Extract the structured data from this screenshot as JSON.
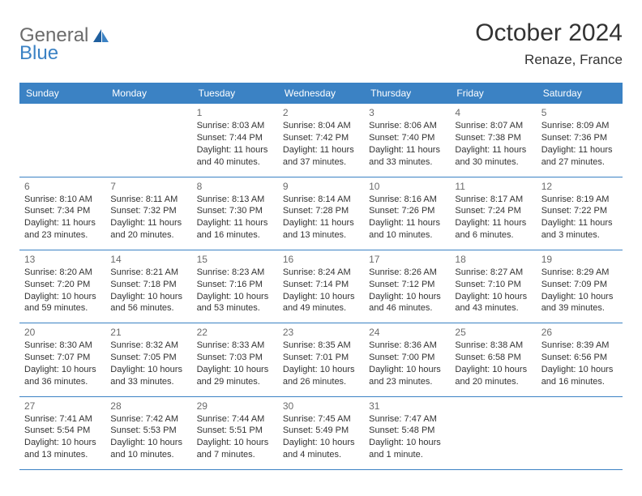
{
  "brand": {
    "part1": "General",
    "part2": "Blue"
  },
  "title": "October 2024",
  "location": "Renaze, France",
  "colors": {
    "header_bg": "#3b82c4",
    "header_text": "#ffffff",
    "border": "#3b82c4",
    "daynum": "#6b6b6b",
    "body_text": "#333333",
    "page_bg": "#ffffff"
  },
  "day_headers": [
    "Sunday",
    "Monday",
    "Tuesday",
    "Wednesday",
    "Thursday",
    "Friday",
    "Saturday"
  ],
  "weeks": [
    [
      {
        "n": "",
        "sr": "",
        "ss": "",
        "dl": ""
      },
      {
        "n": "",
        "sr": "",
        "ss": "",
        "dl": ""
      },
      {
        "n": "1",
        "sr": "Sunrise: 8:03 AM",
        "ss": "Sunset: 7:44 PM",
        "dl": "Daylight: 11 hours and 40 minutes."
      },
      {
        "n": "2",
        "sr": "Sunrise: 8:04 AM",
        "ss": "Sunset: 7:42 PM",
        "dl": "Daylight: 11 hours and 37 minutes."
      },
      {
        "n": "3",
        "sr": "Sunrise: 8:06 AM",
        "ss": "Sunset: 7:40 PM",
        "dl": "Daylight: 11 hours and 33 minutes."
      },
      {
        "n": "4",
        "sr": "Sunrise: 8:07 AM",
        "ss": "Sunset: 7:38 PM",
        "dl": "Daylight: 11 hours and 30 minutes."
      },
      {
        "n": "5",
        "sr": "Sunrise: 8:09 AM",
        "ss": "Sunset: 7:36 PM",
        "dl": "Daylight: 11 hours and 27 minutes."
      }
    ],
    [
      {
        "n": "6",
        "sr": "Sunrise: 8:10 AM",
        "ss": "Sunset: 7:34 PM",
        "dl": "Daylight: 11 hours and 23 minutes."
      },
      {
        "n": "7",
        "sr": "Sunrise: 8:11 AM",
        "ss": "Sunset: 7:32 PM",
        "dl": "Daylight: 11 hours and 20 minutes."
      },
      {
        "n": "8",
        "sr": "Sunrise: 8:13 AM",
        "ss": "Sunset: 7:30 PM",
        "dl": "Daylight: 11 hours and 16 minutes."
      },
      {
        "n": "9",
        "sr": "Sunrise: 8:14 AM",
        "ss": "Sunset: 7:28 PM",
        "dl": "Daylight: 11 hours and 13 minutes."
      },
      {
        "n": "10",
        "sr": "Sunrise: 8:16 AM",
        "ss": "Sunset: 7:26 PM",
        "dl": "Daylight: 11 hours and 10 minutes."
      },
      {
        "n": "11",
        "sr": "Sunrise: 8:17 AM",
        "ss": "Sunset: 7:24 PM",
        "dl": "Daylight: 11 hours and 6 minutes."
      },
      {
        "n": "12",
        "sr": "Sunrise: 8:19 AM",
        "ss": "Sunset: 7:22 PM",
        "dl": "Daylight: 11 hours and 3 minutes."
      }
    ],
    [
      {
        "n": "13",
        "sr": "Sunrise: 8:20 AM",
        "ss": "Sunset: 7:20 PM",
        "dl": "Daylight: 10 hours and 59 minutes."
      },
      {
        "n": "14",
        "sr": "Sunrise: 8:21 AM",
        "ss": "Sunset: 7:18 PM",
        "dl": "Daylight: 10 hours and 56 minutes."
      },
      {
        "n": "15",
        "sr": "Sunrise: 8:23 AM",
        "ss": "Sunset: 7:16 PM",
        "dl": "Daylight: 10 hours and 53 minutes."
      },
      {
        "n": "16",
        "sr": "Sunrise: 8:24 AM",
        "ss": "Sunset: 7:14 PM",
        "dl": "Daylight: 10 hours and 49 minutes."
      },
      {
        "n": "17",
        "sr": "Sunrise: 8:26 AM",
        "ss": "Sunset: 7:12 PM",
        "dl": "Daylight: 10 hours and 46 minutes."
      },
      {
        "n": "18",
        "sr": "Sunrise: 8:27 AM",
        "ss": "Sunset: 7:10 PM",
        "dl": "Daylight: 10 hours and 43 minutes."
      },
      {
        "n": "19",
        "sr": "Sunrise: 8:29 AM",
        "ss": "Sunset: 7:09 PM",
        "dl": "Daylight: 10 hours and 39 minutes."
      }
    ],
    [
      {
        "n": "20",
        "sr": "Sunrise: 8:30 AM",
        "ss": "Sunset: 7:07 PM",
        "dl": "Daylight: 10 hours and 36 minutes."
      },
      {
        "n": "21",
        "sr": "Sunrise: 8:32 AM",
        "ss": "Sunset: 7:05 PM",
        "dl": "Daylight: 10 hours and 33 minutes."
      },
      {
        "n": "22",
        "sr": "Sunrise: 8:33 AM",
        "ss": "Sunset: 7:03 PM",
        "dl": "Daylight: 10 hours and 29 minutes."
      },
      {
        "n": "23",
        "sr": "Sunrise: 8:35 AM",
        "ss": "Sunset: 7:01 PM",
        "dl": "Daylight: 10 hours and 26 minutes."
      },
      {
        "n": "24",
        "sr": "Sunrise: 8:36 AM",
        "ss": "Sunset: 7:00 PM",
        "dl": "Daylight: 10 hours and 23 minutes."
      },
      {
        "n": "25",
        "sr": "Sunrise: 8:38 AM",
        "ss": "Sunset: 6:58 PM",
        "dl": "Daylight: 10 hours and 20 minutes."
      },
      {
        "n": "26",
        "sr": "Sunrise: 8:39 AM",
        "ss": "Sunset: 6:56 PM",
        "dl": "Daylight: 10 hours and 16 minutes."
      }
    ],
    [
      {
        "n": "27",
        "sr": "Sunrise: 7:41 AM",
        "ss": "Sunset: 5:54 PM",
        "dl": "Daylight: 10 hours and 13 minutes."
      },
      {
        "n": "28",
        "sr": "Sunrise: 7:42 AM",
        "ss": "Sunset: 5:53 PM",
        "dl": "Daylight: 10 hours and 10 minutes."
      },
      {
        "n": "29",
        "sr": "Sunrise: 7:44 AM",
        "ss": "Sunset: 5:51 PM",
        "dl": "Daylight: 10 hours and 7 minutes."
      },
      {
        "n": "30",
        "sr": "Sunrise: 7:45 AM",
        "ss": "Sunset: 5:49 PM",
        "dl": "Daylight: 10 hours and 4 minutes."
      },
      {
        "n": "31",
        "sr": "Sunrise: 7:47 AM",
        "ss": "Sunset: 5:48 PM",
        "dl": "Daylight: 10 hours and 1 minute."
      },
      {
        "n": "",
        "sr": "",
        "ss": "",
        "dl": ""
      },
      {
        "n": "",
        "sr": "",
        "ss": "",
        "dl": ""
      }
    ]
  ]
}
